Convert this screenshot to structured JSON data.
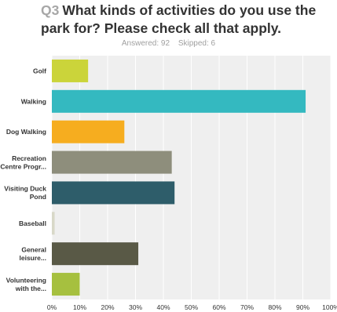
{
  "header": {
    "question_number": "Q3",
    "question_text": "What kinds of activities do you use the park for? Please check all that apply.",
    "answered": "Answered: 92",
    "skipped": "Skipped: 6"
  },
  "chart_data": {
    "type": "bar",
    "orientation": "horizontal",
    "categories": [
      [
        "Golf"
      ],
      [
        "Walking"
      ],
      [
        "Dog Walking"
      ],
      [
        "Recreation",
        "Centre Progr..."
      ],
      [
        "Visiting Duck",
        "Pond"
      ],
      [
        "Baseball"
      ],
      [
        "General",
        "leisure..."
      ],
      [
        "Volunteering",
        "with the..."
      ]
    ],
    "values": [
      13,
      91,
      26,
      43,
      44,
      1,
      31,
      10
    ],
    "colors": [
      "#cbd43a",
      "#34b9c0",
      "#f6ad1f",
      "#8e8e7c",
      "#2e5d6a",
      "#d8d8c8",
      "#595946",
      "#a6c03f"
    ],
    "xlim": [
      0,
      100
    ],
    "xticks": [
      "0%",
      "10%",
      "20%",
      "30%",
      "40%",
      "50%",
      "60%",
      "70%",
      "80%",
      "90%",
      "100%"
    ],
    "grid": true,
    "legend": "none"
  }
}
